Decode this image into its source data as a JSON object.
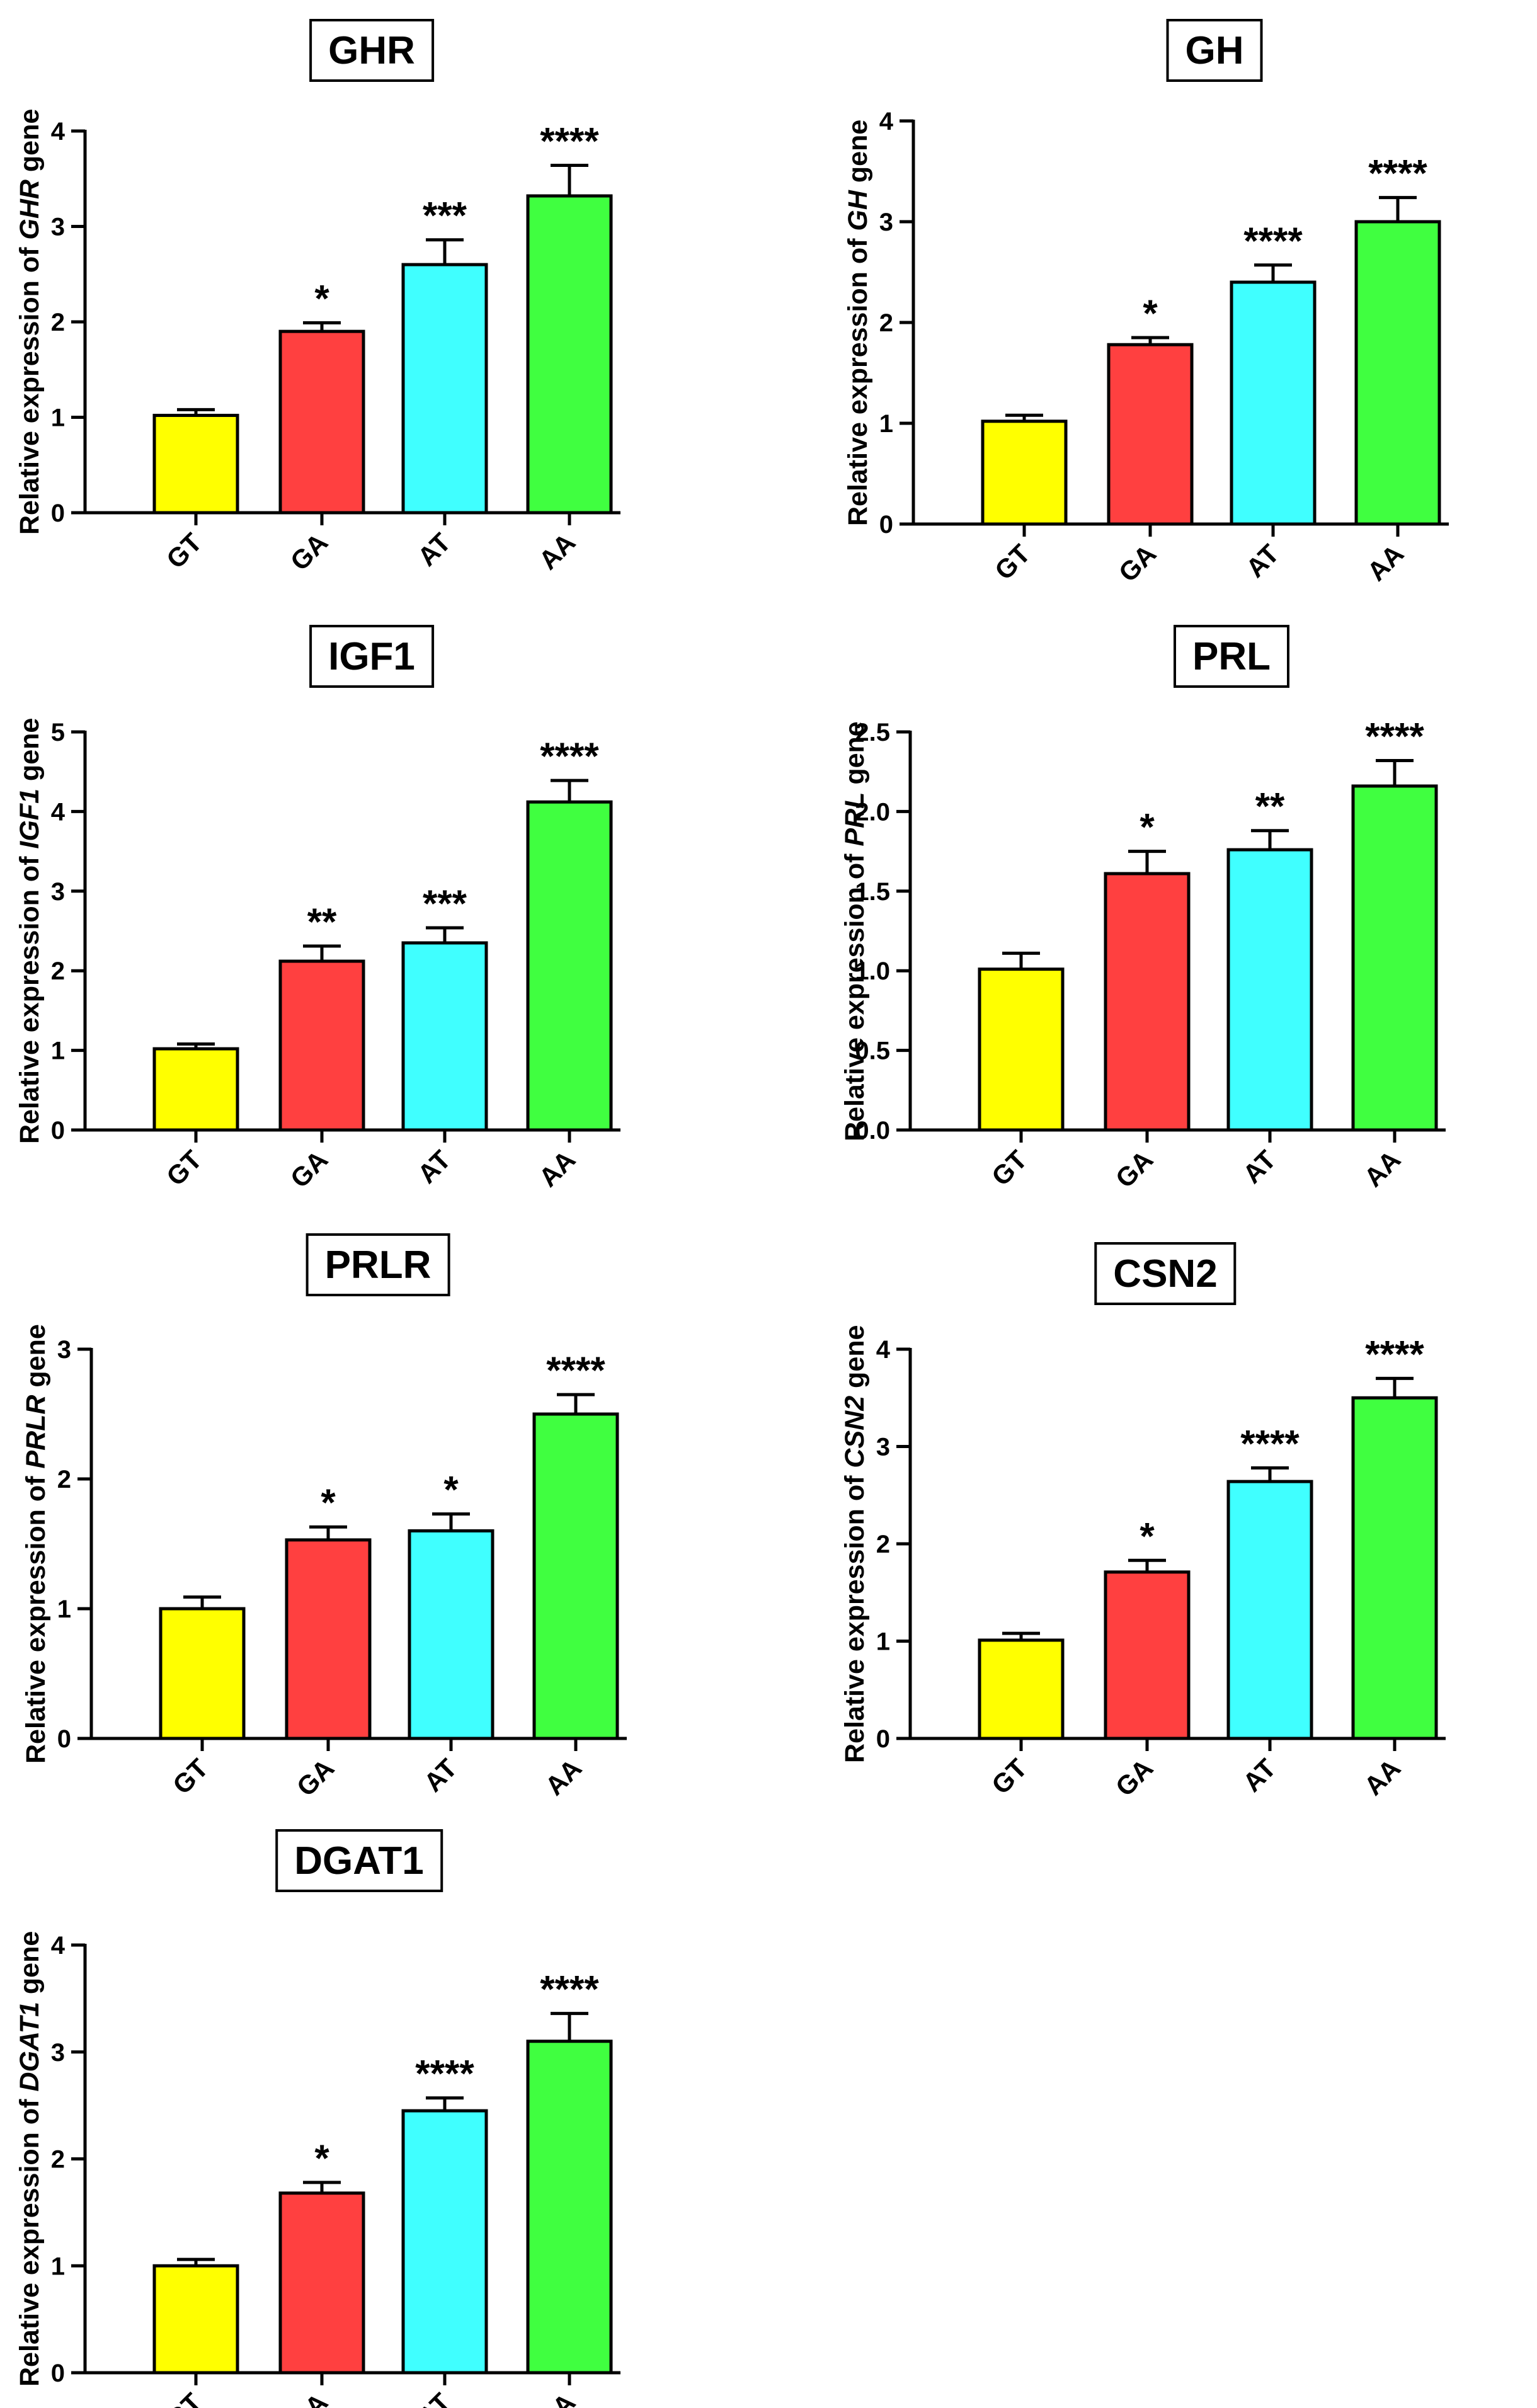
{
  "figure": {
    "colors": {
      "GT": "#ffff00",
      "GA": "#ff4040",
      "AT": "#40ffff",
      "AA": "#40ff40",
      "axis": "#000000"
    }
  },
  "chart_data": [
    {
      "type": "bar",
      "title": "GHR",
      "ylabel_prefix": "Relative expression of ",
      "ylabel_gene": "GHR",
      "ylabel_suffix": " gene",
      "categories": [
        "GT",
        "GA",
        "AT",
        "AA"
      ],
      "values": [
        1.02,
        1.9,
        2.6,
        3.32
      ],
      "errors": [
        0.06,
        0.09,
        0.26,
        0.32
      ],
      "significance": [
        "",
        "*",
        "***",
        "****"
      ],
      "ylim": [
        0,
        4
      ],
      "yticks": [
        0,
        1,
        2,
        3,
        4
      ],
      "ytick_labels": [
        "0",
        "1",
        "2",
        "3",
        "4"
      ]
    },
    {
      "type": "bar",
      "title": "GH",
      "ylabel_prefix": "Relative expression of ",
      "ylabel_gene": "GH",
      "ylabel_suffix": " gene",
      "categories": [
        "GT",
        "GA",
        "AT",
        "AA"
      ],
      "values": [
        1.02,
        1.78,
        2.4,
        3.0
      ],
      "errors": [
        0.06,
        0.07,
        0.17,
        0.24
      ],
      "significance": [
        "",
        "*",
        "****",
        "****"
      ],
      "ylim": [
        0,
        4
      ],
      "yticks": [
        0,
        1,
        2,
        3,
        4
      ],
      "ytick_labels": [
        "0",
        "1",
        "2",
        "3",
        "4"
      ]
    },
    {
      "type": "bar",
      "title": "IGF1",
      "ylabel_prefix": "Relative expression of ",
      "ylabel_gene": "IGF1",
      "ylabel_suffix": " gene",
      "categories": [
        "GT",
        "GA",
        "AT",
        "AA"
      ],
      "values": [
        1.02,
        2.12,
        2.35,
        4.12
      ],
      "errors": [
        0.06,
        0.19,
        0.19,
        0.27
      ],
      "significance": [
        "",
        "**",
        "***",
        "****"
      ],
      "ylim": [
        0,
        5
      ],
      "yticks": [
        0,
        1,
        2,
        3,
        4,
        5
      ],
      "ytick_labels": [
        "0",
        "1",
        "2",
        "3",
        "4",
        "5"
      ]
    },
    {
      "type": "bar",
      "title": "PRL",
      "ylabel_prefix": "Relative expression of ",
      "ylabel_gene": "PRL",
      "ylabel_suffix": " gene",
      "categories": [
        "GT",
        "GA",
        "AT",
        "AA"
      ],
      "values": [
        1.01,
        1.61,
        1.76,
        2.16
      ],
      "errors": [
        0.1,
        0.14,
        0.12,
        0.16
      ],
      "significance": [
        "",
        "*",
        "**",
        "****"
      ],
      "ylim": [
        0,
        2.5
      ],
      "yticks": [
        0,
        0.5,
        1,
        1.5,
        2,
        2.5
      ],
      "ytick_labels": [
        "0.0",
        "0.5",
        "1.0",
        "1.5",
        "2.0",
        "2.5"
      ]
    },
    {
      "type": "bar",
      "title": "PRLR",
      "ylabel_prefix": "Relative expression of ",
      "ylabel_gene": "PRLR",
      "ylabel_suffix": " gene",
      "categories": [
        "GT",
        "GA",
        "AT",
        "AA"
      ],
      "values": [
        1.0,
        1.53,
        1.6,
        2.5
      ],
      "errors": [
        0.09,
        0.1,
        0.13,
        0.15
      ],
      "significance": [
        "",
        "*",
        "*",
        "****"
      ],
      "ylim": [
        0,
        3
      ],
      "yticks": [
        0,
        1,
        2,
        3
      ],
      "ytick_labels": [
        "0",
        "1",
        "2",
        "3"
      ]
    },
    {
      "type": "bar",
      "title": "CSN2",
      "ylabel_prefix": "Relative expression of ",
      "ylabel_gene": "CSN2",
      "ylabel_suffix": " gene",
      "categories": [
        "GT",
        "GA",
        "AT",
        "AA"
      ],
      "values": [
        1.01,
        1.71,
        2.64,
        3.5
      ],
      "errors": [
        0.07,
        0.12,
        0.14,
        0.2
      ],
      "significance": [
        "",
        "*",
        "****",
        "****"
      ],
      "ylim": [
        0,
        4
      ],
      "yticks": [
        0,
        1,
        2,
        3,
        4
      ],
      "ytick_labels": [
        "0",
        "1",
        "2",
        "3",
        "4"
      ]
    },
    {
      "type": "bar",
      "title": "DGAT1",
      "ylabel_prefix": "Relative expression of ",
      "ylabel_gene": "DGAT1",
      "ylabel_suffix": " gene",
      "categories": [
        "GT",
        "GA",
        "AT",
        "AA"
      ],
      "values": [
        1.0,
        1.68,
        2.45,
        3.1
      ],
      "errors": [
        0.06,
        0.1,
        0.12,
        0.26
      ],
      "significance": [
        "",
        "*",
        "****",
        "****"
      ],
      "ylim": [
        0,
        4
      ],
      "yticks": [
        0,
        1,
        2,
        3,
        4
      ],
      "ytick_labels": [
        "0",
        "1",
        "2",
        "3",
        "4"
      ]
    }
  ]
}
